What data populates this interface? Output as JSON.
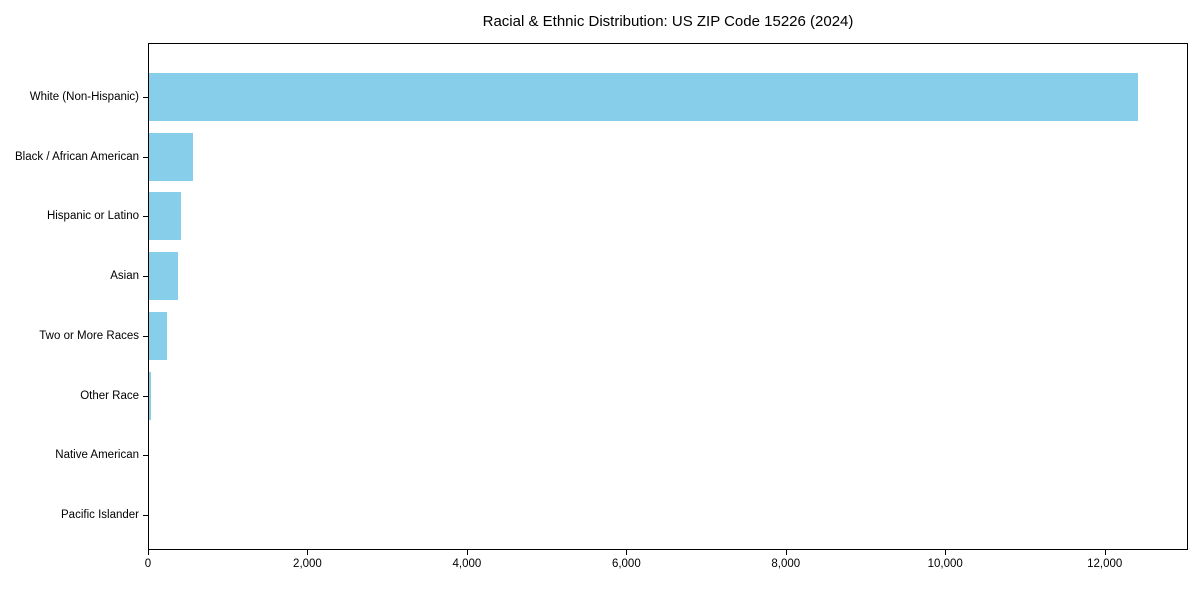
{
  "chart_data": {
    "type": "bar",
    "orientation": "horizontal",
    "title": "Racial & Ethnic Distribution: US ZIP Code 15226 (2024)",
    "categories": [
      "White (Non-Hispanic)",
      "Black / African American",
      "Hispanic or Latino",
      "Asian",
      "Two or More Races",
      "Other Race",
      "Native American",
      "Pacific Islander"
    ],
    "values": [
      12400,
      550,
      400,
      370,
      220,
      20,
      0,
      0
    ],
    "xlabel": "",
    "ylabel": "",
    "xlim": [
      0,
      13020
    ],
    "xticks": [
      0,
      2000,
      4000,
      6000,
      8000,
      10000,
      12000
    ],
    "xtick_labels": [
      "0",
      "2,000",
      "4,000",
      "6,000",
      "8,000",
      "10,000",
      "12,000"
    ],
    "bar_color": "#87CEEB",
    "grid": false,
    "legend": null,
    "plot_border_color": "#000000",
    "text_color": "#000000"
  }
}
